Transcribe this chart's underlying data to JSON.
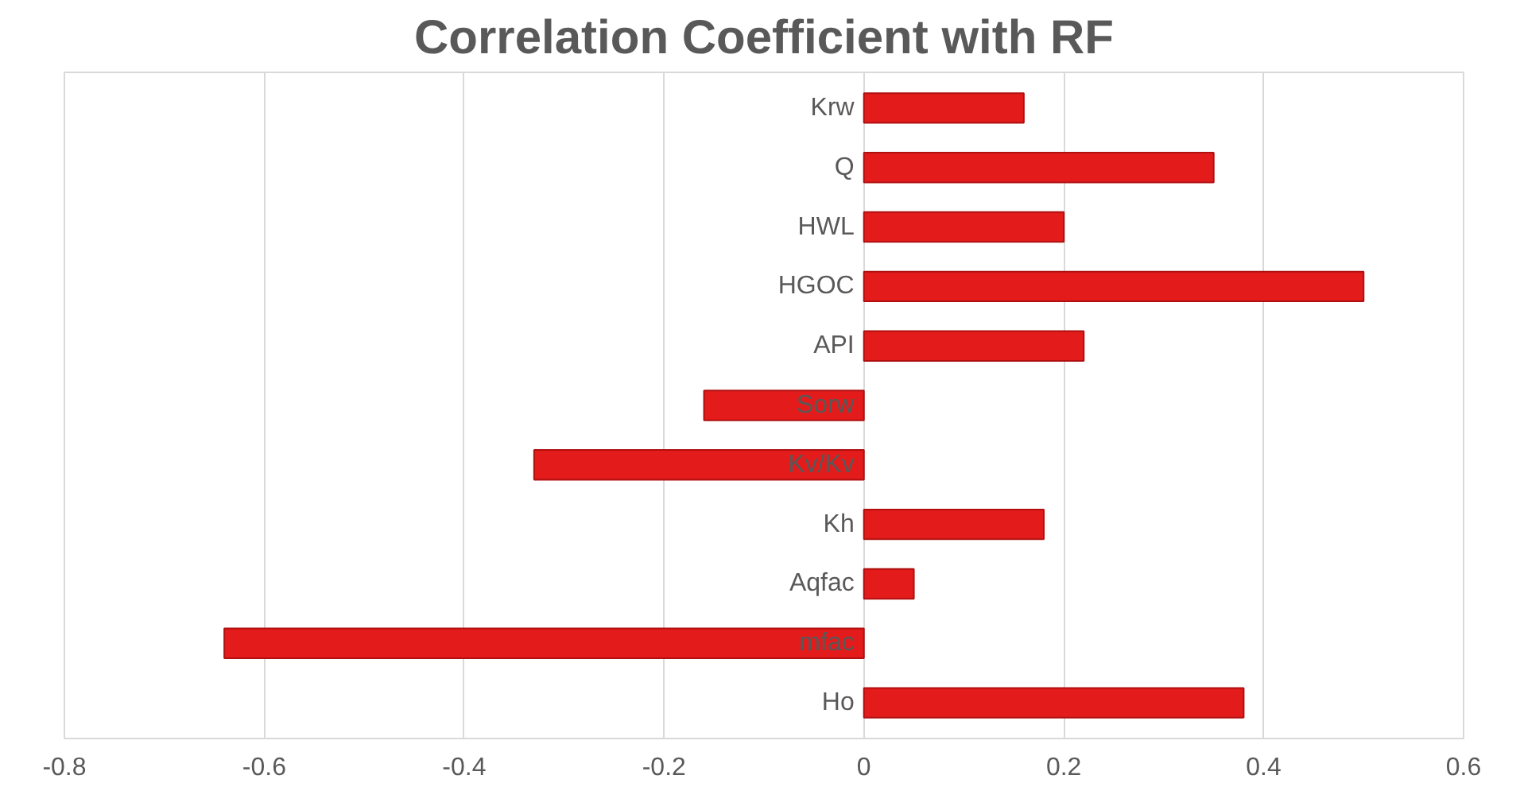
{
  "chart_data": {
    "type": "bar",
    "orientation": "horizontal",
    "title": "Correlation Coefficient with RF",
    "categories": [
      "Krw",
      "Q",
      "HWL",
      "HGOC",
      "API",
      "Sorw",
      "Kv/Kv",
      "Kh",
      "Aqfac",
      "mfac",
      "Ho"
    ],
    "values": [
      0.16,
      0.35,
      0.2,
      0.5,
      0.22,
      -0.16,
      -0.33,
      0.18,
      0.05,
      -0.64,
      0.38
    ],
    "color": "#e31b1b",
    "xlim": [
      -0.8,
      0.6
    ],
    "xticks": [
      -0.8,
      -0.6,
      -0.4,
      -0.2,
      0,
      0.2,
      0.4,
      0.6
    ],
    "grid": "x"
  }
}
